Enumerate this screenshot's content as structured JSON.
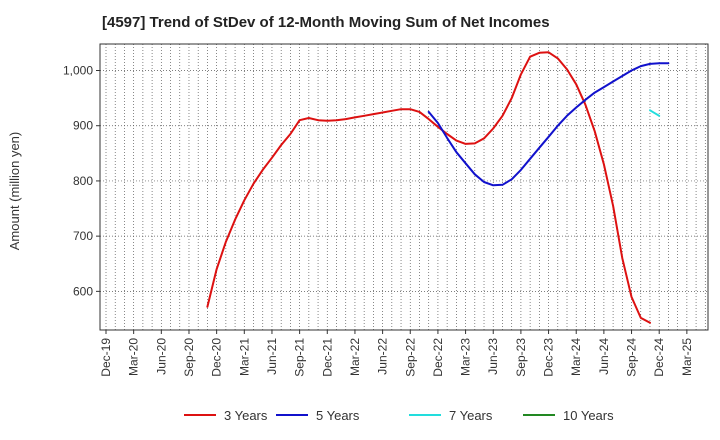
{
  "chart_data": {
    "type": "line",
    "title": "[4597]  Trend of StDev of 12-Month Moving Sum of Net Incomes",
    "xlabel": "",
    "ylabel": "Amount (million yen)",
    "x_tick_labels": [
      "Dec-19",
      "Mar-20",
      "Jun-20",
      "Sep-20",
      "Dec-20",
      "Mar-21",
      "Jun-21",
      "Sep-21",
      "Dec-21",
      "Mar-22",
      "Jun-22",
      "Sep-22",
      "Dec-22",
      "Mar-23",
      "Jun-23",
      "Sep-23",
      "Dec-23",
      "Mar-24",
      "Jun-24",
      "Sep-24",
      "Dec-24",
      "Mar-25"
    ],
    "y_ticks": [
      600,
      700,
      800,
      900,
      1000
    ],
    "y_tick_labels": [
      "600",
      "700",
      "800",
      "900",
      "1,000"
    ],
    "ylim": [
      530,
      1048
    ],
    "grid": true,
    "legend_position": "bottom",
    "series": [
      {
        "name": "3 Years",
        "color": "#dd1111",
        "start_month": "Nov-20",
        "values": [
          572,
          640,
          690,
          730,
          765,
          795,
          820,
          842,
          865,
          885,
          910,
          914,
          910,
          909,
          910,
          912,
          915,
          918,
          921,
          924,
          927,
          930,
          930,
          925,
          912,
          898,
          885,
          873,
          867,
          868,
          877,
          895,
          918,
          950,
          993,
          1025,
          1032,
          1033,
          1022,
          1002,
          975,
          938,
          890,
          830,
          755,
          660,
          590,
          552,
          543
        ]
      },
      {
        "name": "5 Years",
        "color": "#1111cc",
        "start_month": "Nov-22",
        "values": [
          925,
          905,
          878,
          852,
          832,
          812,
          798,
          792,
          793,
          803,
          820,
          840,
          860,
          880,
          900,
          918,
          933,
          947,
          960,
          970,
          980,
          990,
          1000,
          1008,
          1012,
          1013,
          1013
        ]
      },
      {
        "name": "7 Years",
        "color": "#22dddd",
        "start_month": "Nov-24",
        "values": [
          928,
          918
        ]
      },
      {
        "name": "10 Years",
        "color": "#228822",
        "start_month": "",
        "values": []
      }
    ]
  }
}
